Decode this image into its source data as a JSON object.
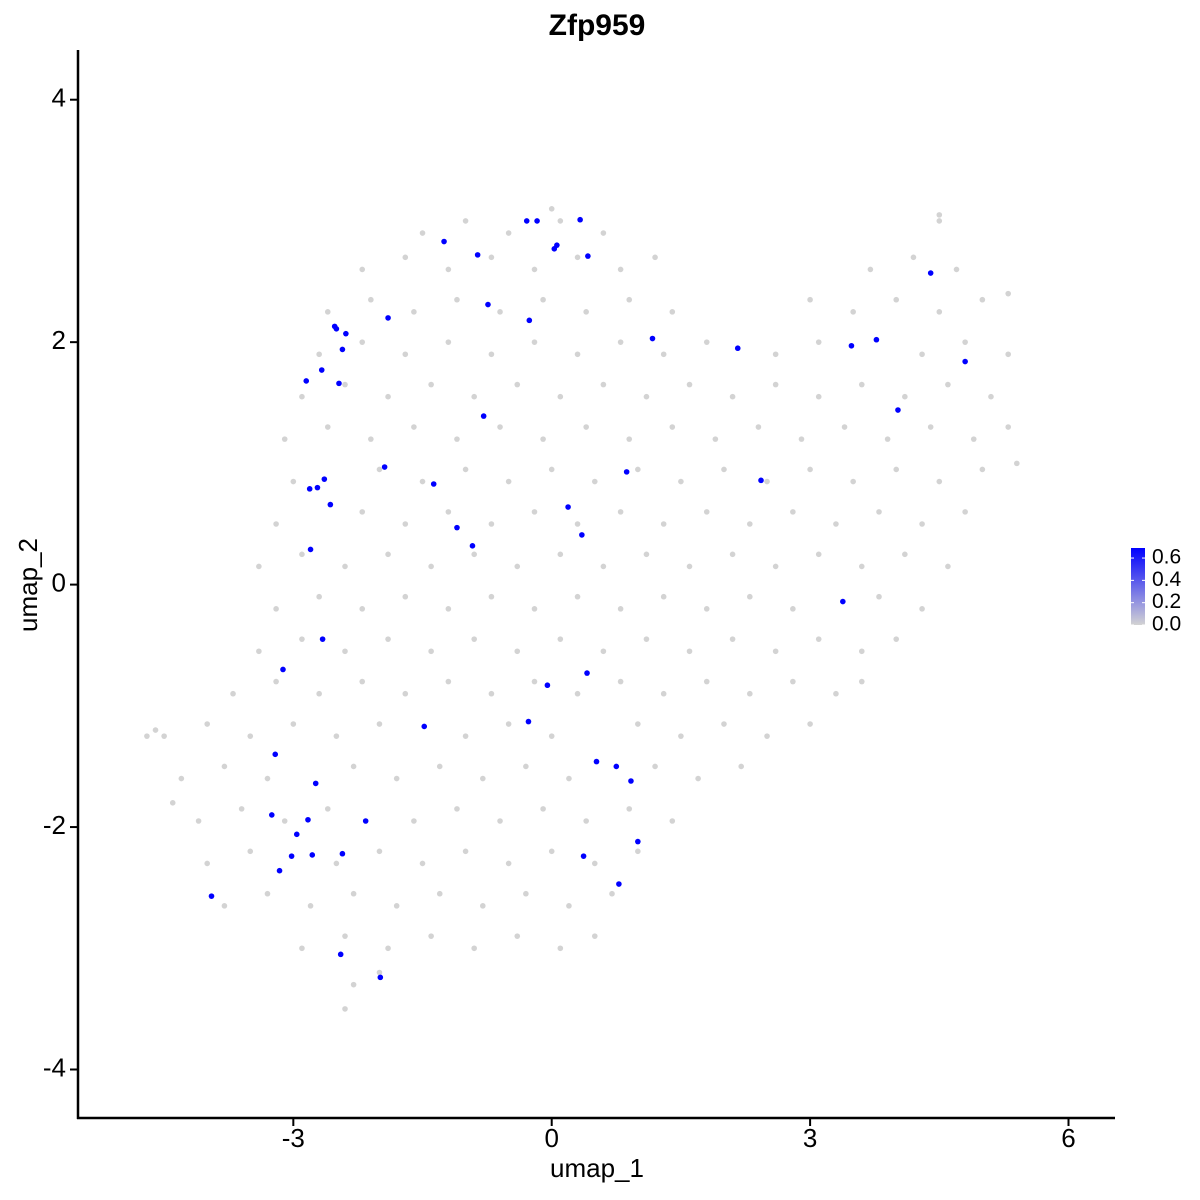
{
  "chart_data": {
    "type": "scatter",
    "title": "Zfp959",
    "x_label": "umap_1",
    "y_label": "umap_2",
    "xlim": [
      -5.5,
      6.54
    ],
    "ylim": [
      -4.4,
      4.41
    ],
    "xticks": [
      -3,
      0,
      3,
      6
    ],
    "yticks": [
      -4,
      -2,
      0,
      2,
      4
    ],
    "x": [
      -2.3,
      -2.0,
      -2.9,
      -2.4,
      -1.9,
      -1.4,
      -0.9,
      -0.4,
      0.1,
      0.5,
      -3.8,
      -3.3,
      -2.8,
      -2.3,
      -1.8,
      -1.3,
      -0.8,
      -0.3,
      0.2,
      0.7,
      -4.0,
      -3.5,
      -2.5,
      -2.0,
      -1.5,
      -1.0,
      -0.5,
      0.0,
      0.5,
      1.0,
      -4.1,
      -3.6,
      -3.1,
      -2.6,
      -1.6,
      -1.1,
      -0.6,
      -0.1,
      0.4,
      0.9,
      1.4,
      -4.3,
      -3.8,
      -3.3,
      -2.3,
      -1.8,
      -1.3,
      -0.8,
      -0.3,
      0.2,
      1.2,
      1.7,
      2.2,
      -4.5,
      -4.0,
      -3.5,
      -3.0,
      -2.5,
      -2.0,
      -1.0,
      -0.5,
      0.0,
      1.0,
      1.5,
      2.0,
      2.5,
      3.0,
      -3.7,
      -3.2,
      -2.7,
      -2.2,
      -1.7,
      -1.2,
      -0.7,
      -0.2,
      0.3,
      0.8,
      1.3,
      1.8,
      2.3,
      2.8,
      3.3,
      3.6,
      -3.4,
      -2.9,
      -2.4,
      -1.9,
      -1.4,
      -0.9,
      -0.4,
      0.1,
      0.6,
      1.1,
      1.6,
      2.1,
      2.6,
      3.1,
      3.6,
      4.0,
      -3.2,
      -2.7,
      -2.2,
      -1.7,
      -1.2,
      -0.7,
      -0.2,
      0.3,
      0.8,
      1.3,
      1.8,
      2.3,
      2.8,
      3.8,
      4.3,
      -3.4,
      -2.9,
      -2.4,
      -1.9,
      -1.4,
      -0.9,
      -0.4,
      0.1,
      0.6,
      1.1,
      1.6,
      2.1,
      2.6,
      3.1,
      3.6,
      4.1,
      4.6,
      -3.2,
      -2.2,
      -1.7,
      -1.2,
      -0.7,
      -0.2,
      0.3,
      0.8,
      1.3,
      1.8,
      2.3,
      2.8,
      3.3,
      3.8,
      4.3,
      4.8,
      -3.0,
      -2.0,
      -1.5,
      -1.0,
      -0.5,
      0.0,
      0.5,
      1.0,
      1.5,
      2.0,
      2.5,
      3.0,
      3.5,
      4.0,
      4.5,
      5.0,
      -3.1,
      -2.6,
      -2.1,
      -1.6,
      -1.1,
      -0.6,
      -0.1,
      0.4,
      0.9,
      1.4,
      1.9,
      2.4,
      2.9,
      3.4,
      3.9,
      4.4,
      4.9,
      5.3,
      -2.9,
      -2.4,
      -1.9,
      -1.4,
      -0.9,
      -0.4,
      0.1,
      0.6,
      1.1,
      1.6,
      2.1,
      2.6,
      3.1,
      3.6,
      4.1,
      4.6,
      5.1,
      -2.7,
      -2.2,
      -1.7,
      -1.2,
      -0.7,
      -0.2,
      0.3,
      0.8,
      1.3,
      1.8,
      2.6,
      3.1,
      4.3,
      4.8,
      5.3,
      -2.6,
      -2.1,
      -1.6,
      -1.1,
      -0.6,
      -0.1,
      0.4,
      0.9,
      1.4,
      3.0,
      3.5,
      4.0,
      4.5,
      5.0,
      -2.2,
      -1.7,
      -1.2,
      -0.7,
      -0.2,
      0.3,
      0.8,
      1.2,
      3.7,
      4.2,
      4.7,
      -1.5,
      -1.0,
      -0.5,
      0.1,
      0.6,
      4.5,
      -4.7,
      -4.6,
      -4.4,
      -2.4,
      0.0,
      4.5,
      5.3,
      5.4,
      -0.29,
      -0.17,
      0.33,
      -1.25,
      -0.86,
      0.06,
      0.03,
      0.42,
      -0.74,
      -0.26,
      -1.9,
      -2.52,
      -2.5,
      -2.39,
      -2.43,
      -2.67,
      -2.85,
      -2.47,
      1.17,
      2.16,
      3.48,
      3.77,
      4.4,
      4.8,
      4.02,
      -0.79,
      -1.94,
      -1.37,
      -2.64,
      -2.72,
      -2.81,
      -2.57,
      0.87,
      2.43,
      0.19,
      -1.1,
      -0.92,
      0.35,
      -2.8,
      3.38,
      -2.66,
      -3.12,
      0.41,
      -0.05,
      -0.27,
      -1.48,
      -3.21,
      0.52,
      0.75,
      0.92,
      -2.74,
      -3.25,
      -2.83,
      -2.16,
      -2.96,
      -3.02,
      -2.78,
      -2.43,
      0.37,
      1.0,
      -3.16,
      0.78,
      -3.95,
      -2.45,
      -1.99
    ],
    "y": [
      -3.3,
      -3.2,
      -3.0,
      -2.9,
      -3.0,
      -2.9,
      -3.0,
      -2.9,
      -3.0,
      -2.9,
      -2.65,
      -2.55,
      -2.65,
      -2.55,
      -2.65,
      -2.55,
      -2.65,
      -2.55,
      -2.65,
      -2.55,
      -2.3,
      -2.2,
      -2.3,
      -2.2,
      -2.3,
      -2.2,
      -2.3,
      -2.2,
      -2.3,
      -2.2,
      -1.95,
      -1.85,
      -1.95,
      -1.85,
      -1.95,
      -1.85,
      -1.95,
      -1.85,
      -1.95,
      -1.85,
      -1.95,
      -1.6,
      -1.5,
      -1.6,
      -1.5,
      -1.6,
      -1.5,
      -1.6,
      -1.5,
      -1.6,
      -1.5,
      -1.6,
      -1.5,
      -1.25,
      -1.15,
      -1.25,
      -1.15,
      -1.25,
      -1.15,
      -1.25,
      -1.15,
      -1.25,
      -1.15,
      -1.25,
      -1.15,
      -1.25,
      -1.15,
      -0.9,
      -0.8,
      -0.9,
      -0.8,
      -0.9,
      -0.8,
      -0.9,
      -0.8,
      -0.9,
      -0.8,
      -0.9,
      -0.8,
      -0.9,
      -0.8,
      -0.9,
      -0.8,
      -0.55,
      -0.45,
      -0.55,
      -0.45,
      -0.55,
      -0.45,
      -0.55,
      -0.45,
      -0.55,
      -0.45,
      -0.55,
      -0.45,
      -0.55,
      -0.45,
      -0.55,
      -0.45,
      -0.2,
      -0.1,
      -0.2,
      -0.1,
      -0.2,
      -0.1,
      -0.2,
      -0.1,
      -0.2,
      -0.1,
      -0.2,
      -0.1,
      -0.2,
      -0.1,
      -0.2,
      0.15,
      0.25,
      0.15,
      0.25,
      0.15,
      0.25,
      0.15,
      0.25,
      0.15,
      0.25,
      0.15,
      0.25,
      0.15,
      0.25,
      0.15,
      0.25,
      0.15,
      0.5,
      0.6,
      0.5,
      0.6,
      0.5,
      0.6,
      0.5,
      0.6,
      0.5,
      0.6,
      0.5,
      0.6,
      0.5,
      0.6,
      0.5,
      0.6,
      0.85,
      0.95,
      0.85,
      0.95,
      0.85,
      0.95,
      0.85,
      0.95,
      0.85,
      0.95,
      0.85,
      0.95,
      0.85,
      0.95,
      0.85,
      0.95,
      1.2,
      1.3,
      1.2,
      1.3,
      1.2,
      1.3,
      1.2,
      1.3,
      1.2,
      1.3,
      1.2,
      1.3,
      1.2,
      1.3,
      1.2,
      1.3,
      1.2,
      1.3,
      1.55,
      1.65,
      1.55,
      1.65,
      1.55,
      1.65,
      1.55,
      1.65,
      1.55,
      1.65,
      1.55,
      1.65,
      1.55,
      1.65,
      1.55,
      1.65,
      1.55,
      1.9,
      2.0,
      1.9,
      2.0,
      1.9,
      2.0,
      1.9,
      2.0,
      1.9,
      2.0,
      1.9,
      2.0,
      1.9,
      2.0,
      1.9,
      2.25,
      2.35,
      2.25,
      2.35,
      2.25,
      2.35,
      2.25,
      2.35,
      2.25,
      2.35,
      2.25,
      2.35,
      2.25,
      2.35,
      2.6,
      2.7,
      2.6,
      2.7,
      2.6,
      2.7,
      2.6,
      2.7,
      2.6,
      2.7,
      2.6,
      2.9,
      3.0,
      2.9,
      3.0,
      2.9,
      3.0,
      -1.25,
      -1.2,
      -1.8,
      -3.5,
      3.1,
      3.05,
      2.4,
      1.0,
      3.0,
      3.0,
      3.01,
      2.83,
      2.72,
      2.8,
      2.77,
      2.71,
      2.31,
      2.18,
      2.2,
      2.13,
      2.11,
      2.07,
      1.94,
      1.77,
      1.68,
      1.66,
      2.03,
      1.95,
      1.97,
      2.02,
      2.57,
      1.84,
      1.44,
      1.39,
      0.97,
      0.83,
      0.87,
      0.8,
      0.79,
      0.66,
      0.93,
      0.86,
      0.64,
      0.47,
      0.32,
      0.41,
      0.29,
      -0.14,
      -0.45,
      -0.7,
      -0.73,
      -0.83,
      -1.13,
      -1.17,
      -1.4,
      -1.46,
      -1.5,
      -1.62,
      -1.64,
      -1.9,
      -1.94,
      -1.95,
      -2.06,
      -2.24,
      -2.23,
      -2.22,
      -2.24,
      -2.12,
      -2.36,
      -2.47,
      -2.57,
      -3.05,
      -3.24
    ],
    "values": [
      0,
      0,
      0,
      0,
      0,
      0,
      0,
      0,
      0,
      0,
      0,
      0,
      0,
      0,
      0,
      0,
      0,
      0,
      0,
      0,
      0,
      0,
      0,
      0,
      0,
      0,
      0,
      0,
      0,
      0,
      0,
      0,
      0,
      0,
      0,
      0,
      0,
      0,
      0,
      0,
      0,
      0,
      0,
      0,
      0,
      0,
      0,
      0,
      0,
      0,
      0,
      0,
      0,
      0,
      0,
      0,
      0,
      0,
      0,
      0,
      0,
      0,
      0,
      0,
      0,
      0,
      0,
      0,
      0,
      0,
      0,
      0,
      0,
      0,
      0,
      0,
      0,
      0,
      0,
      0,
      0,
      0,
      0,
      0,
      0,
      0,
      0,
      0,
      0,
      0,
      0,
      0,
      0,
      0,
      0,
      0,
      0,
      0,
      0,
      0,
      0,
      0,
      0,
      0,
      0,
      0,
      0,
      0,
      0,
      0,
      0,
      0,
      0,
      0,
      0,
      0,
      0,
      0,
      0,
      0,
      0,
      0,
      0,
      0,
      0,
      0,
      0,
      0,
      0,
      0,
      0,
      0,
      0,
      0,
      0,
      0,
      0,
      0,
      0,
      0,
      0,
      0,
      0,
      0,
      0,
      0,
      0,
      0,
      0,
      0,
      0,
      0,
      0,
      0,
      0,
      0,
      0,
      0,
      0,
      0,
      0,
      0,
      0,
      0,
      0,
      0,
      0,
      0,
      0,
      0,
      0,
      0,
      0,
      0,
      0,
      0,
      0,
      0,
      0,
      0,
      0,
      0,
      0,
      0,
      0,
      0,
      0,
      0,
      0,
      0,
      0,
      0,
      0,
      0,
      0,
      0,
      0,
      0,
      0,
      0,
      0,
      0,
      0,
      0,
      0,
      0,
      0,
      0,
      0,
      0,
      0,
      0,
      0,
      0,
      0,
      0,
      0,
      0,
      0,
      0,
      0,
      0,
      0,
      0,
      0,
      0,
      0,
      0,
      0,
      0,
      0,
      0,
      0,
      0,
      0,
      0,
      0,
      0,
      0,
      0,
      0,
      0,
      0,
      0,
      0,
      0,
      0,
      0,
      0,
      0,
      0,
      0,
      0.69,
      0.69,
      0.69,
      0.69,
      0.69,
      0.69,
      0.69,
      0.69,
      0.69,
      0.69,
      0.69,
      0.69,
      0.69,
      0.69,
      0.69,
      0.69,
      0.69,
      0.69,
      0.69,
      0.69,
      0.69,
      0.69,
      0.69,
      0.69,
      0.69,
      0.69,
      0.69,
      0.69,
      0.69,
      0.69,
      0.69,
      0.69,
      0.69,
      0.69,
      0.69,
      0.69,
      0.69,
      0.69,
      0.69,
      0.69,
      0.69,
      0.69,
      0.69,
      0.69,
      0.69,
      0.69,
      0.69,
      0.69,
      0.69,
      0.69,
      0.69,
      0.69,
      0.69,
      0.69,
      0.69,
      0.69,
      0.69,
      0.69,
      0.69,
      0.69,
      0.69,
      0.69,
      0.69,
      0.69,
      0.69
    ],
    "colorbar": {
      "colors": [
        "#d3d3d3",
        "#0000ff"
      ],
      "limits": [
        0,
        0.69
      ],
      "ticks": [
        {
          "value": 0,
          "label": "0.0"
        },
        0.2,
        0.4,
        0.6
      ]
    }
  }
}
